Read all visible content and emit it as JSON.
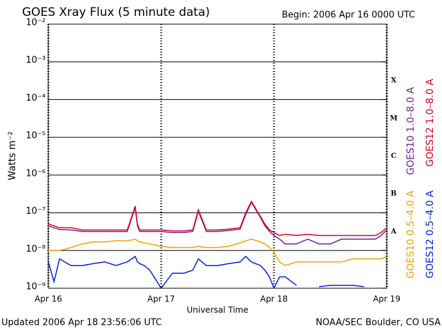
{
  "chart_data": {
    "type": "line",
    "title": "GOES Xray Flux (5 minute data)",
    "subtitle": "Begin:  2006 Apr 16 0000 UTC",
    "xlabel": "Universal Time",
    "ylabel": "Watts m⁻²",
    "footer_left": "Updated 2006 Apr 18 23:56:06 UTC",
    "footer_right": "NOAA/SEC Boulder, CO USA",
    "class_labels": [
      "X",
      "M",
      "C",
      "B",
      "A"
    ],
    "log_scale": true,
    "grid": true,
    "xlim": [
      0,
      3
    ],
    "xticks": [
      {
        "value": 0,
        "label": "Apr 16"
      },
      {
        "value": 1,
        "label": "Apr 17"
      },
      {
        "value": 2,
        "label": "Apr 18"
      },
      {
        "value": 3,
        "label": "Apr 19"
      }
    ],
    "ylim": [
      1e-09,
      0.01
    ],
    "yticks": [
      {
        "value": 1e-09,
        "label": "10⁻⁹"
      },
      {
        "value": 1e-08,
        "label": "10⁻⁸"
      },
      {
        "value": 1e-07,
        "label": "10⁻⁷"
      },
      {
        "value": 1e-06,
        "label": "10⁻⁶"
      },
      {
        "value": 1e-05,
        "label": "10⁻⁵"
      },
      {
        "value": 0.0001,
        "label": "10⁻⁴"
      },
      {
        "value": 0.001,
        "label": "10⁻³"
      },
      {
        "value": 0.01,
        "label": "10⁻²"
      }
    ],
    "x": [
      0,
      0.05,
      0.1,
      0.2,
      0.3,
      0.4,
      0.5,
      0.6,
      0.7,
      0.77,
      0.79,
      0.81,
      0.85,
      0.9,
      1.0,
      1.1,
      1.2,
      1.28,
      1.33,
      1.4,
      1.5,
      1.6,
      1.7,
      1.75,
      1.8,
      1.88,
      1.92,
      1.96,
      2.0,
      2.05,
      2.1,
      2.2,
      2.3,
      2.4,
      2.5,
      2.6,
      2.7,
      2.8,
      2.9,
      2.95,
      3.0
    ],
    "series": [
      {
        "name": "GOES10 1.0–8.0 A",
        "color": "#7020a0",
        "values": [
          4.5e-08,
          4e-08,
          3.6e-08,
          3.5e-08,
          3.2e-08,
          3.2e-08,
          3.2e-08,
          3.2e-08,
          3.2e-08,
          1.4e-07,
          4.5e-08,
          3.2e-08,
          3.2e-08,
          3.2e-08,
          3.2e-08,
          3e-08,
          3e-08,
          3.2e-08,
          1.1e-07,
          3.2e-08,
          3.2e-08,
          3.4e-08,
          3.7e-08,
          9e-08,
          1.9e-07,
          7.5e-08,
          4.5e-08,
          3.2e-08,
          2.5e-08,
          2e-08,
          1.5e-08,
          1.5e-08,
          2e-08,
          1.5e-08,
          1.5e-08,
          2e-08,
          2e-08,
          2e-08,
          2e-08,
          2.5e-08,
          3.5e-08
        ]
      },
      {
        "name": "GOES12 1.0–8.0 A",
        "color": "#e0001a",
        "values": [
          5e-08,
          4.5e-08,
          4e-08,
          4e-08,
          3.5e-08,
          3.5e-08,
          3.5e-08,
          3.5e-08,
          3.5e-08,
          1.5e-07,
          5e-08,
          3.5e-08,
          3.5e-08,
          3.5e-08,
          3.5e-08,
          3.3e-08,
          3.3e-08,
          3.5e-08,
          1.2e-07,
          3.5e-08,
          3.5e-08,
          3.7e-08,
          4e-08,
          1e-07,
          2e-07,
          8e-08,
          5e-08,
          3.5e-08,
          3e-08,
          2.5e-08,
          2.7e-08,
          2.5e-08,
          2.7e-08,
          2.5e-08,
          2.5e-08,
          2.5e-08,
          2.5e-08,
          2.5e-08,
          2.5e-08,
          3e-08,
          4e-08
        ]
      },
      {
        "name": "GOES10 0.5–4.0 A",
        "color": "#f0a000",
        "values": [
          1e-08,
          1e-08,
          1e-08,
          1.2e-08,
          1.5e-08,
          1.7e-08,
          1.7e-08,
          1.8e-08,
          1.8e-08,
          2e-08,
          1.8e-08,
          1.7e-08,
          1.6e-08,
          1.5e-08,
          1.3e-08,
          1.2e-08,
          1.2e-08,
          1.2e-08,
          1.3e-08,
          1.2e-08,
          1.2e-08,
          1.3e-08,
          1.6e-08,
          1.8e-08,
          2e-08,
          1.7e-08,
          1.5e-08,
          1.2e-08,
          9e-09,
          5e-09,
          4e-09,
          5e-09,
          5e-09,
          5e-09,
          5e-09,
          5e-09,
          6e-09,
          6e-09,
          6e-09,
          6e-09,
          7e-09
        ]
      },
      {
        "name": "GOES12 0.5–4.0 A",
        "color": "#0020e0",
        "values": [
          5e-09,
          1.5e-09,
          6e-09,
          4e-09,
          4e-09,
          4.5e-09,
          5e-09,
          4e-09,
          5e-09,
          7e-09,
          5e-09,
          4.5e-09,
          4e-09,
          3e-09,
          1e-09,
          2.5e-09,
          2.5e-09,
          3e-09,
          6e-09,
          4e-09,
          4e-09,
          4.5e-09,
          5e-09,
          7e-09,
          5e-09,
          4e-09,
          3e-09,
          2e-09,
          1e-09,
          2e-09,
          2e-09,
          1.2e-09,
          null,
          1.1e-09,
          1.2e-09,
          1.2e-09,
          1.2e-09,
          1.1e-09,
          null,
          1e-09,
          1e-09
        ]
      }
    ]
  }
}
